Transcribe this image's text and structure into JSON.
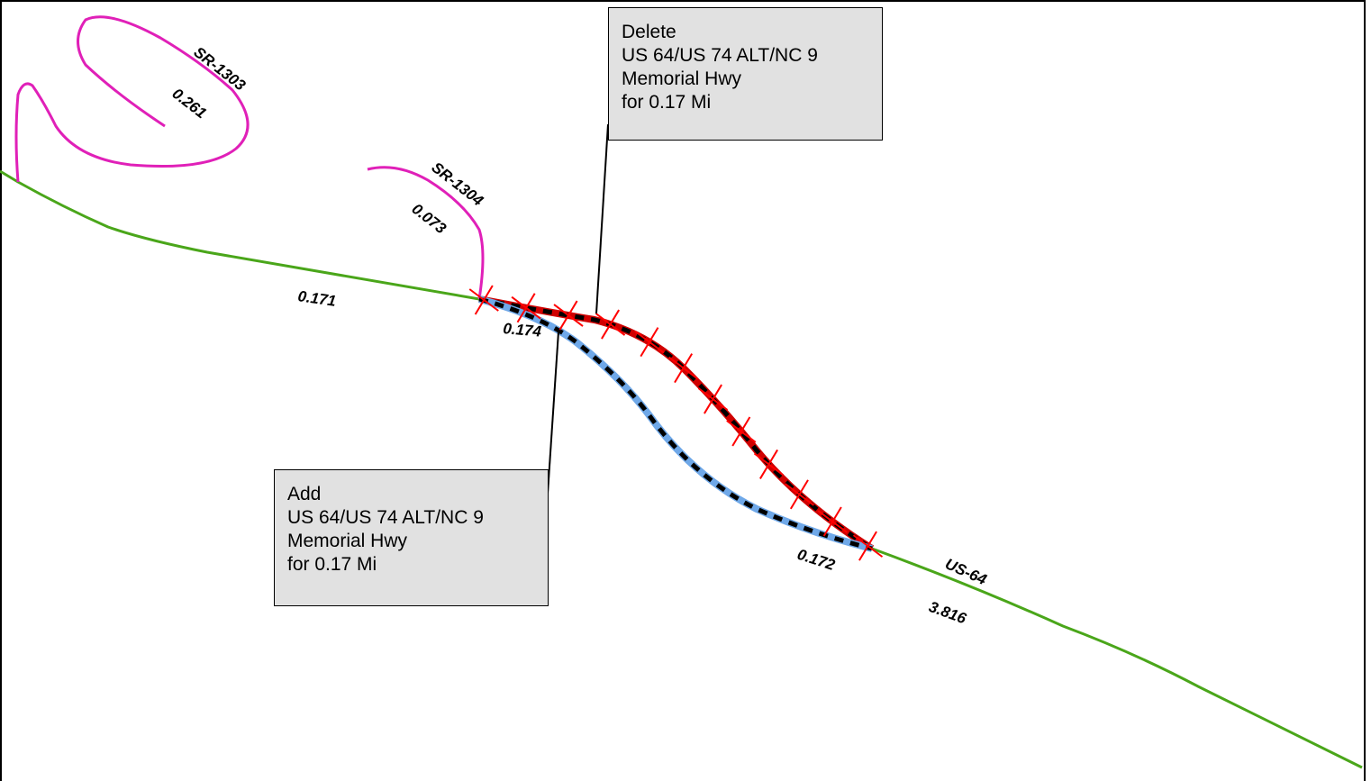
{
  "routes": {
    "sr1303": {
      "name": "SR-1303",
      "length": "0.261",
      "color": "#e020b8"
    },
    "sr1304": {
      "name": "SR-1304",
      "length": "0.073",
      "color": "#e020b8"
    },
    "us64": {
      "name": "US-64",
      "color": "#4aa61a",
      "length_west": "0.171",
      "length_east": "3.816"
    },
    "deleted_segment": {
      "length": "0.172",
      "colors": {
        "line": "#d00000",
        "dash": "#000000",
        "marker": "#ff0000"
      }
    },
    "added_segment": {
      "length": "0.174",
      "colors": {
        "line": "#6fa8e8",
        "dash": "#000000"
      }
    }
  },
  "callouts": {
    "delete": {
      "lines": [
        "Delete",
        "US 64/US 74 ALT/NC 9",
        "Memorial Hwy",
        "for 0.17 Mi"
      ]
    },
    "add": {
      "lines": [
        "Add",
        "US 64/US 74 ALT/NC 9",
        "Memorial Hwy",
        "for 0.17 Mi"
      ]
    }
  },
  "colors": {
    "callout_fill": "#e1e1e1",
    "background": "#ffffff"
  }
}
